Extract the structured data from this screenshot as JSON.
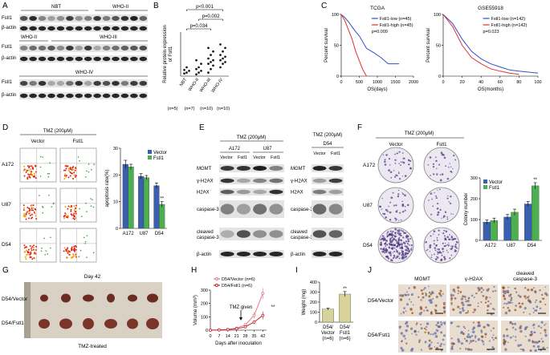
{
  "panel_labels": [
    "A",
    "B",
    "C",
    "D",
    "E",
    "F",
    "G",
    "H",
    "I",
    "J"
  ],
  "blot_a": {
    "rows": [
      "Fstl1",
      "β-actin"
    ],
    "groups": [
      "NBT",
      "WHO-II",
      "WHO-III",
      "WHO-IV"
    ]
  },
  "flow_d": {
    "treatment": "TMZ (200μM)",
    "columns": [
      "Vector",
      "Fstl1"
    ],
    "rows": [
      "A172",
      "U87",
      "D54"
    ]
  },
  "blot_e": {
    "treatment": "TMZ (200μM)",
    "cells": [
      "A172",
      "U87",
      "D54"
    ],
    "lanes": [
      "Vector",
      "Fstl1"
    ],
    "rows": [
      "MGMT",
      "γ-H2AX",
      "H2AX",
      "caspase-3",
      [
        "cleaved",
        "caspase-3"
      ],
      "β-actin"
    ]
  },
  "colony_f": {
    "treatment": "TMZ (200μM)",
    "columns": [
      "Vector",
      "Fstl1"
    ],
    "rows": [
      "A172",
      "U87",
      "D54"
    ]
  },
  "photo_g": {
    "title": "Day 42",
    "rows": [
      "D54/Vector",
      "D54/Fstl1"
    ],
    "caption": "TMZ-treated"
  },
  "ihc_j": {
    "columns": [
      "MGMT",
      "γ-H2AX",
      [
        "cleaved",
        "caspase-3"
      ]
    ],
    "rows": [
      "D54/Vector",
      "D54/Fstl1"
    ]
  },
  "chart_data": [
    {
      "type": "strip",
      "y_label": [
        "Relative protein expression",
        "of Fstl1"
      ],
      "categories": [
        "NBT",
        "WHO-II",
        "WHO-III",
        "WHO-IV"
      ],
      "n_labels": [
        "(n=5)",
        "(n=7)",
        "(n=10)",
        "(n=10)"
      ],
      "values": [
        [
          0.15,
          0.2,
          0.3,
          0.35,
          0.5
        ],
        [
          0.1,
          0.2,
          0.3,
          0.4,
          0.5,
          0.7,
          0.9
        ],
        [
          0.2,
          0.4,
          0.6,
          0.7,
          0.8,
          0.9,
          1.0,
          1.2,
          1.4,
          1.6
        ],
        [
          0.5,
          0.7,
          0.8,
          0.9,
          1.0,
          1.1,
          1.2,
          1.4,
          1.6,
          1.8
        ]
      ],
      "ylim": [
        0,
        2.5
      ],
      "color": "#000000",
      "annotations": [
        "p<0.001",
        "p=0.002",
        "p=0.034"
      ]
    },
    {
      "type": "line",
      "title": "TCGA",
      "x_label": "OS(days)",
      "y_label": "Percent survival",
      "xlim": [
        0,
        2000
      ],
      "xticks": [
        0,
        500,
        1000,
        1500,
        2000
      ],
      "ylim": [
        0,
        100
      ],
      "yticks": [
        0,
        50,
        100
      ],
      "legend": "upper right",
      "series": [
        {
          "name": "Fstl1-low (n=45)",
          "color": "#3050c8",
          "x": [
            0,
            100,
            200,
            300,
            400,
            500,
            600,
            700,
            900,
            1100,
            1300,
            1600
          ],
          "values": [
            100,
            95,
            88,
            80,
            72,
            65,
            55,
            45,
            38,
            30,
            20,
            20
          ]
        },
        {
          "name": "Fstl1-high (n=45)",
          "color": "#e03030",
          "x": [
            0,
            100,
            200,
            300,
            400,
            500,
            600,
            700
          ],
          "values": [
            100,
            90,
            75,
            60,
            40,
            25,
            10,
            0
          ]
        }
      ],
      "annotations": [
        "p=0.009"
      ]
    },
    {
      "type": "line",
      "title": "GSE55918",
      "x_label": "OS(months)",
      "y_label": "Percent survival",
      "xlim": [
        0,
        100
      ],
      "xticks": [
        0,
        20,
        40,
        60,
        80,
        100
      ],
      "ylim": [
        0,
        100
      ],
      "yticks": [
        0,
        50,
        100
      ],
      "legend": "upper right",
      "series": [
        {
          "name": "Fstl1-low (n=142)",
          "color": "#3050c8",
          "x": [
            0,
            10,
            20,
            30,
            40,
            50,
            60,
            70,
            80,
            100
          ],
          "values": [
            100,
            85,
            60,
            40,
            28,
            20,
            15,
            10,
            8,
            5
          ]
        },
        {
          "name": "Fstl1-high (n=142)",
          "color": "#e03030",
          "x": [
            0,
            10,
            20,
            30,
            40,
            50,
            60,
            70,
            80
          ],
          "values": [
            100,
            80,
            50,
            30,
            20,
            12,
            8,
            5,
            3
          ]
        }
      ],
      "annotations": [
        "p=0.023"
      ]
    },
    {
      "type": "bar",
      "y_label": "apoptosis rate(%)",
      "categories": [
        "A172",
        "U87",
        "D54"
      ],
      "ylim": [
        0,
        30
      ],
      "yticks": [
        0,
        10,
        20,
        30
      ],
      "legend": "upper right",
      "series": [
        {
          "name": "Vector",
          "color": "#3a5fb0",
          "values": [
            24,
            19.5,
            16
          ],
          "errors": [
            1.5,
            1,
            1
          ]
        },
        {
          "name": "Fstl1",
          "color": "#4caf50",
          "values": [
            23,
            19,
            9
          ],
          "errors": [
            1,
            0.8,
            1
          ]
        }
      ],
      "annotations": [
        "**"
      ]
    },
    {
      "type": "bar",
      "y_label": "Colony number",
      "categories": [
        "A172",
        "U87",
        "D54"
      ],
      "ylim": [
        0,
        300
      ],
      "yticks": [
        0,
        100,
        200,
        300
      ],
      "legend": "upper left",
      "series": [
        {
          "name": "Vector",
          "color": "#3a5fb0",
          "values": [
            88,
            112,
            175
          ],
          "errors": [
            10,
            12,
            12
          ]
        },
        {
          "name": "Fstl1",
          "color": "#4caf50",
          "values": [
            95,
            135,
            262
          ],
          "errors": [
            12,
            15,
            15
          ]
        }
      ],
      "annotations": [
        "**"
      ]
    },
    {
      "type": "line",
      "x_label": "Days after inoculation",
      "y_label": "Volume (mm³)",
      "markers": true,
      "x": [
        0,
        7,
        14,
        21,
        28,
        35,
        42
      ],
      "xlim": [
        0,
        45
      ],
      "xticks": [
        0,
        7,
        14,
        21,
        28,
        35,
        42
      ],
      "ylim": [
        0,
        300
      ],
      "yticks": [
        0,
        100,
        200,
        300
      ],
      "legend": "above",
      "series": [
        {
          "name": "D54/Vector (n=6)",
          "color": "#e57a8a",
          "values": [
            0,
            2,
            5,
            15,
            40,
            110,
            275
          ],
          "errors": [
            0,
            1,
            2,
            5,
            10,
            25,
            40
          ]
        },
        {
          "name": "D54/Fstl1 (n=6)",
          "color": "#c0282d",
          "values": [
            0,
            2,
            4,
            10,
            25,
            60,
            110
          ],
          "errors": [
            0,
            1,
            2,
            3,
            8,
            15,
            30
          ]
        }
      ],
      "annotations": [
        "TMZ given",
        "**"
      ]
    },
    {
      "type": "bar",
      "y_label": "Weight (mg)",
      "categories": [
        [
          "D54/",
          "Vector",
          "(n=6)"
        ],
        [
          "D54/",
          "Fstl1",
          "(n=6)"
        ]
      ],
      "values": [
        130,
        280
      ],
      "errors": [
        10,
        25
      ],
      "color": "#d8d39a",
      "ylim": [
        0,
        400
      ],
      "yticks": [
        0,
        100,
        200,
        300,
        400
      ],
      "annotations": [
        "**"
      ]
    }
  ]
}
